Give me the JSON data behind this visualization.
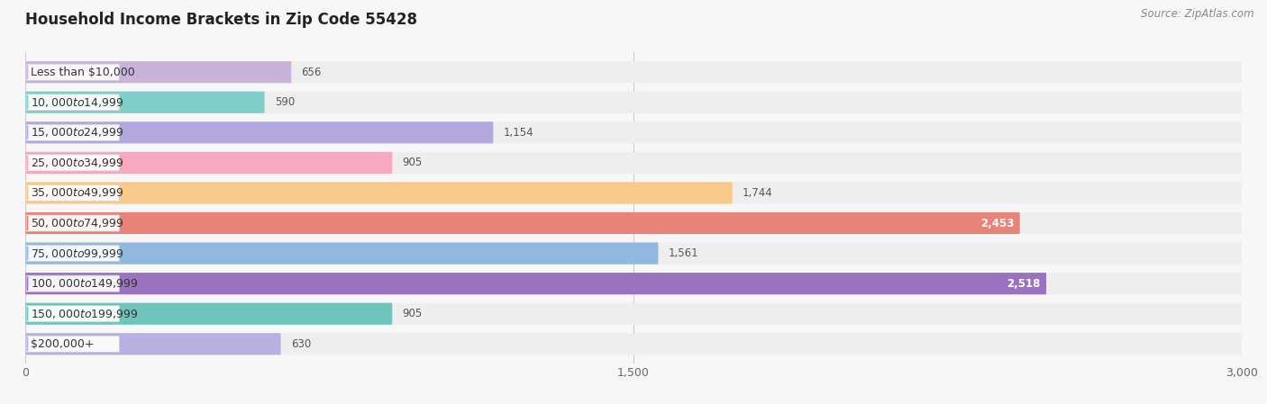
{
  "title": "Household Income Brackets in Zip Code 55428",
  "source": "Source: ZipAtlas.com",
  "categories": [
    "Less than $10,000",
    "$10,000 to $14,999",
    "$15,000 to $24,999",
    "$25,000 to $34,999",
    "$35,000 to $49,999",
    "$50,000 to $74,999",
    "$75,000 to $99,999",
    "$100,000 to $149,999",
    "$150,000 to $199,999",
    "$200,000+"
  ],
  "values": [
    656,
    590,
    1154,
    905,
    1744,
    2453,
    1561,
    2518,
    905,
    630
  ],
  "bar_colors": [
    "#c9b4d9",
    "#7ecfca",
    "#b3a8de",
    "#f5a8be",
    "#f8c98a",
    "#e8837a",
    "#90b8e0",
    "#9b72c0",
    "#6dc5bc",
    "#b8b0e0"
  ],
  "xlim": [
    0,
    3000
  ],
  "xticks": [
    0,
    1500,
    3000
  ],
  "xtick_labels": [
    "0",
    "1,500",
    "3,000"
  ],
  "background_color": "#f7f7f7",
  "bar_bg_color": "#e8e8e8",
  "row_bg_color": "#f0f0f0",
  "title_fontsize": 12,
  "label_fontsize": 9,
  "value_fontsize": 8.5,
  "source_fontsize": 8.5
}
